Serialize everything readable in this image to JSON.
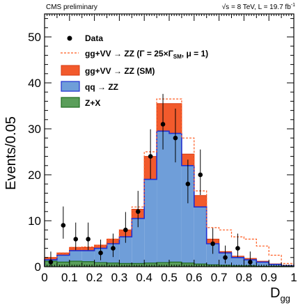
{
  "header": {
    "left": "CMS preliminary",
    "right_sqrt": "√s",
    "right_main": " = 8 TeV, L = 19.7 fb",
    "right_sup": "-1"
  },
  "colors": {
    "data": "#000000",
    "bsm_line": "#ff5a1f",
    "sm_fill": "#f25a2c",
    "qq_fill": "#6f9ed9",
    "qq_line": "#1f2fd0",
    "zx_fill": "#5a9e5a",
    "zx_line": "#1f6b1f"
  },
  "legend": {
    "data": "Data",
    "bsm_prefix": "gg+VV → ZZ (Γ = 25×Γ",
    "bsm_sub": "SM",
    "bsm_suffix": ", μ = 1)",
    "sm": "gg+VV → ZZ (SM)",
    "qq": "qq → ZZ",
    "zx": "Z+X"
  },
  "chart_data": {
    "type": "bar",
    "xlabel_main": "D",
    "xlabel_sub": "gg",
    "ylabel": "Events/0.05",
    "xlim": [
      0,
      1
    ],
    "ylim": [
      0,
      55
    ],
    "legend_position": "top-left",
    "x_ticks": [
      "0",
      "0.1",
      "0.2",
      "0.3",
      "0.4",
      "0.5",
      "0.6",
      "0.7",
      "0.8",
      "0.9",
      "1"
    ],
    "y_ticks": [
      "0",
      "10",
      "20",
      "30",
      "40",
      "50"
    ],
    "bin_edges": [
      0,
      0.05,
      0.1,
      0.15,
      0.2,
      0.25,
      0.3,
      0.35,
      0.4,
      0.45,
      0.5,
      0.55,
      0.6,
      0.65,
      0.7,
      0.75,
      0.8,
      0.85,
      0.9,
      0.95,
      1.0
    ],
    "series": [
      {
        "name": "Z+X",
        "type": "stacked-fill",
        "values": [
          1.2,
          1.0,
          1.2,
          1.1,
          0.9,
          0.8,
          0.7,
          0.7,
          0.8,
          0.9,
          1.0,
          0.8,
          0.6,
          0.4,
          0.3,
          0.2,
          0.2,
          0.1,
          0.1,
          0.1
        ]
      },
      {
        "name": "qq → ZZ",
        "type": "stacked-fill",
        "cumulative": [
          1.5,
          2.5,
          3.5,
          3.5,
          4.0,
          5.0,
          6.5,
          10.5,
          19.0,
          29.5,
          29.0,
          22.0,
          13.0,
          5.0,
          3.0,
          2.0,
          1.5,
          1.0,
          0.5,
          0.2
        ]
      },
      {
        "name": "gg+VV → ZZ (SM)",
        "type": "stacked-fill",
        "cumulative": [
          2.0,
          3.0,
          4.2,
          4.2,
          4.7,
          6.0,
          8.0,
          12.5,
          24.0,
          35.5,
          35.5,
          24.5,
          15.5,
          6.0,
          3.3,
          2.3,
          1.8,
          1.2,
          0.6,
          0.3
        ]
      },
      {
        "name": "gg+VV → ZZ (Γ = 25×ΓSM, μ = 1)",
        "type": "dashed-line",
        "cumulative": [
          2.0,
          3.0,
          4.2,
          4.3,
          4.7,
          6.0,
          8.0,
          13.0,
          25.0,
          36.5,
          36.5,
          28.0,
          16.5,
          8.5,
          8.0,
          6.5,
          6.0,
          4.5,
          2.5,
          0.7
        ]
      }
    ],
    "data": {
      "name": "Data",
      "x": [
        0.025,
        0.075,
        0.125,
        0.175,
        0.225,
        0.275,
        0.325,
        0.375,
        0.425,
        0.475,
        0.525,
        0.575,
        0.625,
        0.675,
        0.725,
        0.775,
        0.825
      ],
      "y": [
        1,
        9,
        6,
        6,
        3,
        4,
        8,
        12,
        24,
        31,
        28,
        18,
        20,
        5,
        2,
        4,
        1
      ],
      "err_low": [
        0.8,
        2.9,
        2.4,
        2.4,
        1.6,
        1.9,
        2.8,
        3.4,
        4.9,
        5.5,
        5.3,
        4.2,
        4.4,
        2.2,
        1.3,
        1.9,
        0.8
      ],
      "err_high": [
        2.3,
        4.1,
        3.6,
        3.6,
        2.9,
        3.2,
        3.9,
        4.5,
        5.9,
        6.6,
        6.4,
        5.3,
        5.5,
        3.4,
        2.6,
        3.2,
        2.3
      ]
    }
  }
}
